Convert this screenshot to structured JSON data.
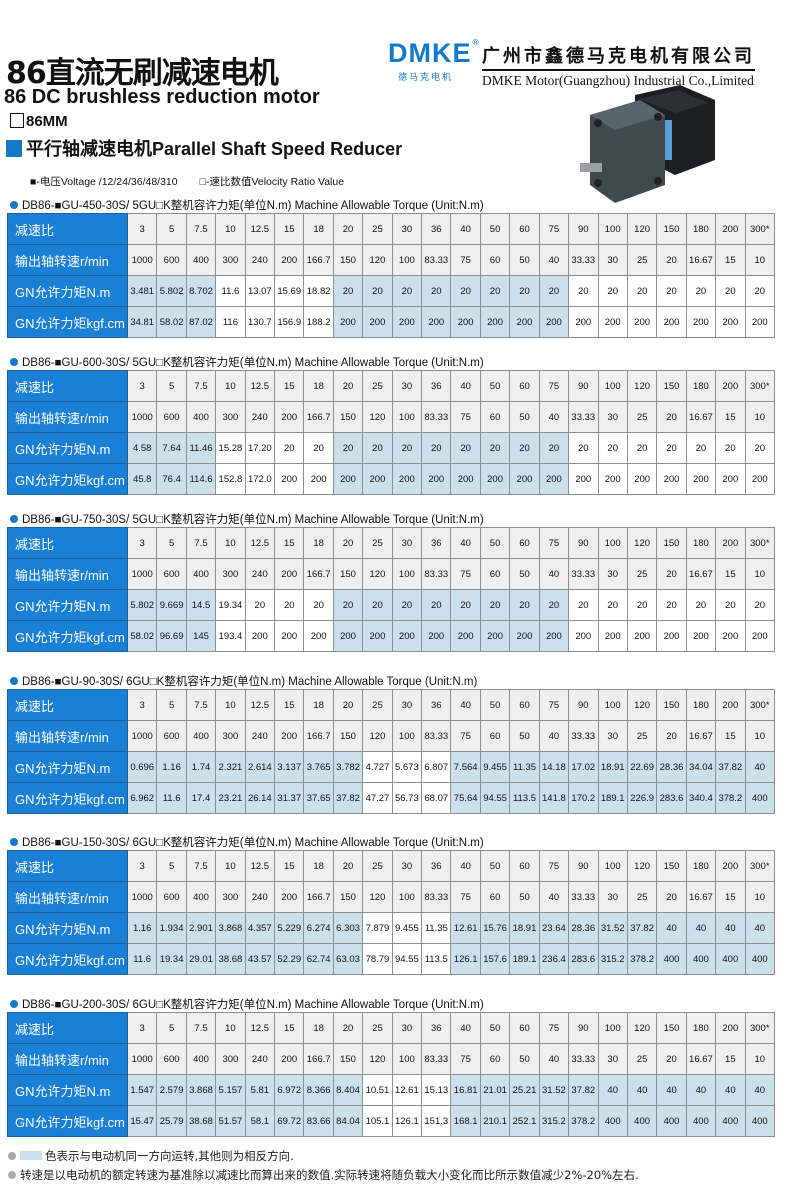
{
  "header": {
    "title_cn": "86直流无刷减速电机",
    "title_en": "86 DC brushless reduction motor",
    "size": "86MM",
    "type": "平行轴减速电机Parallel Shaft Speed Reducer",
    "legend_voltage": "■-电压Voltage /12/24/36/48/310",
    "legend_ratio": "□-速比数值Velocity Ratio Value"
  },
  "brand": {
    "logo": "DMKE",
    "logo_cn": "德马克电机",
    "company_cn": "广州市鑫德马克电机有限公司",
    "company_en": "DMKE Motor(Guangzhou) Industrial Co.,Limited",
    "color": "#1479c9"
  },
  "colors": {
    "label_bg": "#1a80d6",
    "same_direction": "#cbe0eb",
    "header_bg": "#efefef"
  },
  "row_labels": [
    "减速比",
    "输出轴转速r/min",
    "GN允许力矩N.m",
    "GN允许力矩kgf.cm"
  ],
  "tables": [
    {
      "title": "DB86-■GU-450-30S/ 5GU□K整机容许力矩(单位N.m) Machine Allowable Torque (Unit:N.m)",
      "ratio": [
        "3",
        "5",
        "7.5",
        "10",
        "12.5",
        "15",
        "18",
        "20",
        "25",
        "30",
        "36",
        "40",
        "50",
        "60",
        "75",
        "90",
        "100",
        "120",
        "150",
        "180",
        "200",
        "300*"
      ],
      "speed": [
        "1000",
        "600",
        "400",
        "300",
        "240",
        "200",
        "166.7",
        "150",
        "120",
        "100",
        "83.33",
        "75",
        "60",
        "50",
        "40",
        "33.33",
        "30",
        "25",
        "20",
        "16.67",
        "15",
        "10"
      ],
      "nm": [
        "3.481",
        "5.802",
        "8.702",
        "11.6",
        "13.07",
        "15.69",
        "18.82",
        "20",
        "20",
        "20",
        "20",
        "20",
        "20",
        "20",
        "20",
        "20",
        "20",
        "20",
        "20",
        "20",
        "20",
        "20"
      ],
      "kgf": [
        "34.81",
        "58.02",
        "87.02",
        "116",
        "130.7",
        "156.9",
        "188.2",
        "200",
        "200",
        "200",
        "200",
        "200",
        "200",
        "200",
        "200",
        "200",
        "200",
        "200",
        "200",
        "200",
        "200",
        "200"
      ],
      "same_direction": [
        1,
        1,
        1,
        0,
        0,
        0,
        0,
        1,
        1,
        1,
        1,
        1,
        1,
        1,
        1,
        0,
        0,
        0,
        0,
        0,
        0,
        0
      ]
    },
    {
      "title": "DB86-■GU-600-30S/ 5GU□K整机容许力矩(单位N.m) Machine Allowable Torque (Unit:N.m)",
      "ratio": [
        "3",
        "5",
        "7.5",
        "10",
        "12.5",
        "15",
        "18",
        "20",
        "25",
        "30",
        "36",
        "40",
        "50",
        "60",
        "75",
        "90",
        "100",
        "120",
        "150",
        "180",
        "200",
        "300*"
      ],
      "speed": [
        "1000",
        "600",
        "400",
        "300",
        "240",
        "200",
        "166.7",
        "150",
        "120",
        "100",
        "83.33",
        "75",
        "60",
        "50",
        "40",
        "33.33",
        "30",
        "25",
        "20",
        "16.67",
        "15",
        "10"
      ],
      "nm": [
        "4.58",
        "7.64",
        "11.46",
        "15.28",
        "17.20",
        "20",
        "20",
        "20",
        "20",
        "20",
        "20",
        "20",
        "20",
        "20",
        "20",
        "20",
        "20",
        "20",
        "20",
        "20",
        "20",
        "20"
      ],
      "kgf": [
        "45.8",
        "76.4",
        "114.6",
        "152.8",
        "172.0",
        "200",
        "200",
        "200",
        "200",
        "200",
        "200",
        "200",
        "200",
        "200",
        "200",
        "200",
        "200",
        "200",
        "200",
        "200",
        "200",
        "200"
      ],
      "same_direction": [
        1,
        1,
        1,
        0,
        0,
        0,
        0,
        1,
        1,
        1,
        1,
        1,
        1,
        1,
        1,
        0,
        0,
        0,
        0,
        0,
        0,
        0
      ]
    },
    {
      "title": "DB86-■GU-750-30S/ 5GU□K整机容许力矩(单位N.m) Machine Allowable Torque (Unit:N.m)",
      "ratio": [
        "3",
        "5",
        "7.5",
        "10",
        "12.5",
        "15",
        "18",
        "20",
        "25",
        "30",
        "36",
        "40",
        "50",
        "60",
        "75",
        "90",
        "100",
        "120",
        "150",
        "180",
        "200",
        "300*"
      ],
      "speed": [
        "1000",
        "600",
        "400",
        "300",
        "240",
        "200",
        "166.7",
        "150",
        "120",
        "100",
        "83.33",
        "75",
        "60",
        "50",
        "40",
        "33.33",
        "30",
        "25",
        "20",
        "16.67",
        "15",
        "10"
      ],
      "nm": [
        "5.802",
        "9.669",
        "14.5",
        "19.34",
        "20",
        "20",
        "20",
        "20",
        "20",
        "20",
        "20",
        "20",
        "20",
        "20",
        "20",
        "20",
        "20",
        "20",
        "20",
        "20",
        "20",
        "20"
      ],
      "kgf": [
        "58.02",
        "96.69",
        "145",
        "193.4",
        "200",
        "200",
        "200",
        "200",
        "200",
        "200",
        "200",
        "200",
        "200",
        "200",
        "200",
        "200",
        "200",
        "200",
        "200",
        "200",
        "200",
        "200"
      ],
      "same_direction": [
        1,
        1,
        1,
        0,
        0,
        0,
        0,
        1,
        1,
        1,
        1,
        1,
        1,
        1,
        1,
        0,
        0,
        0,
        0,
        0,
        0,
        0
      ]
    },
    {
      "title": "DB86-■GU-90-30S/ 6GU□K整机容许力矩(单位N.m) Machine Allowable Torque (Unit:N.m)",
      "ratio": [
        "3",
        "5",
        "7.5",
        "10",
        "12.5",
        "15",
        "18",
        "20",
        "25",
        "30",
        "36",
        "40",
        "50",
        "60",
        "75",
        "90",
        "100",
        "120",
        "150",
        "180",
        "200",
        "300*"
      ],
      "speed": [
        "1000",
        "600",
        "400",
        "300",
        "240",
        "200",
        "166.7",
        "150",
        "120",
        "100",
        "83.33",
        "75",
        "60",
        "50",
        "40",
        "33.33",
        "30",
        "25",
        "20",
        "16.67",
        "15",
        "10"
      ],
      "nm": [
        "0.696",
        "1.16",
        "1.74",
        "2.321",
        "2.614",
        "3.137",
        "3.765",
        "3.782",
        "4.727",
        "5.673",
        "6.807",
        "7.564",
        "9.455",
        "11.35",
        "14.18",
        "17.02",
        "18.91",
        "22.69",
        "28.36",
        "34.04",
        "37.82",
        "40"
      ],
      "kgf": [
        "6.962",
        "11.6",
        "17.4",
        "23.21",
        "26.14",
        "31.37",
        "37.65",
        "37.82",
        "47.27",
        "56.73",
        "68.07",
        "75.64",
        "94.55",
        "113.5",
        "141.8",
        "170.2",
        "189.1",
        "226.9",
        "283.6",
        "340.4",
        "378.2",
        "400"
      ],
      "same_direction": [
        1,
        1,
        1,
        1,
        1,
        1,
        1,
        1,
        0,
        0,
        0,
        1,
        1,
        1,
        1,
        1,
        1,
        1,
        1,
        1,
        1,
        1
      ]
    },
    {
      "title": "DB86-■GU-150-30S/ 6GU□K整机容许力矩(单位N.m) Machine Allowable Torque (Unit:N.m)",
      "ratio": [
        "3",
        "5",
        "7.5",
        "10",
        "12.5",
        "15",
        "18",
        "20",
        "25",
        "30",
        "36",
        "40",
        "50",
        "60",
        "75",
        "90",
        "100",
        "120",
        "150",
        "180",
        "200",
        "300*"
      ],
      "speed": [
        "1000",
        "600",
        "400",
        "300",
        "240",
        "200",
        "166.7",
        "150",
        "120",
        "100",
        "83.33",
        "75",
        "60",
        "50",
        "40",
        "33.33",
        "30",
        "25",
        "20",
        "16.67",
        "15",
        "10"
      ],
      "nm": [
        "1.16",
        "1.934",
        "2.901",
        "3.868",
        "4.357",
        "5.229",
        "6.274",
        "6.303",
        "7.879",
        "9.455",
        "11.35",
        "12.61",
        "15.76",
        "18.91",
        "23.64",
        "28.36",
        "31.52",
        "37.82",
        "40",
        "40",
        "40",
        "40"
      ],
      "kgf": [
        "11.6",
        "19.34",
        "29.01",
        "38.68",
        "43.57",
        "52.29",
        "62.74",
        "63.03",
        "78.79",
        "94.55",
        "113.5",
        "126.1",
        "157.6",
        "189.1",
        "236.4",
        "283.6",
        "315.2",
        "378.2",
        "400",
        "400",
        "400",
        "400"
      ],
      "same_direction": [
        1,
        1,
        1,
        1,
        1,
        1,
        1,
        1,
        0,
        0,
        0,
        1,
        1,
        1,
        1,
        1,
        1,
        1,
        1,
        1,
        1,
        1
      ]
    },
    {
      "title": "DB86-■GU-200-30S/ 6GU□K整机容许力矩(单位N.m) Machine Allowable Torque (Unit:N.m)",
      "ratio": [
        "3",
        "5",
        "7.5",
        "10",
        "12.5",
        "15",
        "18",
        "20",
        "25",
        "30",
        "36",
        "40",
        "50",
        "60",
        "75",
        "90",
        "100",
        "120",
        "150",
        "180",
        "200",
        "300*"
      ],
      "speed": [
        "1000",
        "600",
        "400",
        "300",
        "240",
        "200",
        "166.7",
        "150",
        "120",
        "100",
        "83.33",
        "75",
        "60",
        "50",
        "40",
        "33.33",
        "30",
        "25",
        "20",
        "16.67",
        "15",
        "10"
      ],
      "nm": [
        "1.547",
        "2.579",
        "3.868",
        "5.157",
        "5.81",
        "6.972",
        "8.366",
        "8.404",
        "10.51",
        "12.61",
        "15.13",
        "16.81",
        "21.01",
        "25.21",
        "31.52",
        "37.82",
        "40",
        "40",
        "40",
        "40",
        "40",
        "40"
      ],
      "kgf": [
        "15.47",
        "25.79",
        "38.68",
        "51.57",
        "58.1",
        "69.72",
        "83.66",
        "84.04",
        "105.1",
        "126.1",
        "151.3",
        "168.1",
        "210.1",
        "252.1",
        "315.2",
        "378.2",
        "400",
        "400",
        "400",
        "400",
        "400",
        "400"
      ],
      "same_direction": [
        1,
        1,
        1,
        1,
        1,
        1,
        1,
        1,
        0,
        0,
        0,
        1,
        1,
        1,
        1,
        1,
        1,
        1,
        1,
        1,
        1,
        1
      ]
    }
  ],
  "notes": [
    "色表示与电动机同一方向运转,其他则为相反方向.",
    "转速是以电动机的额定转速为基准除以减速比而算出来的数值.实际转速将随负载大小变化而比所示数值减少2%-20%左右."
  ]
}
